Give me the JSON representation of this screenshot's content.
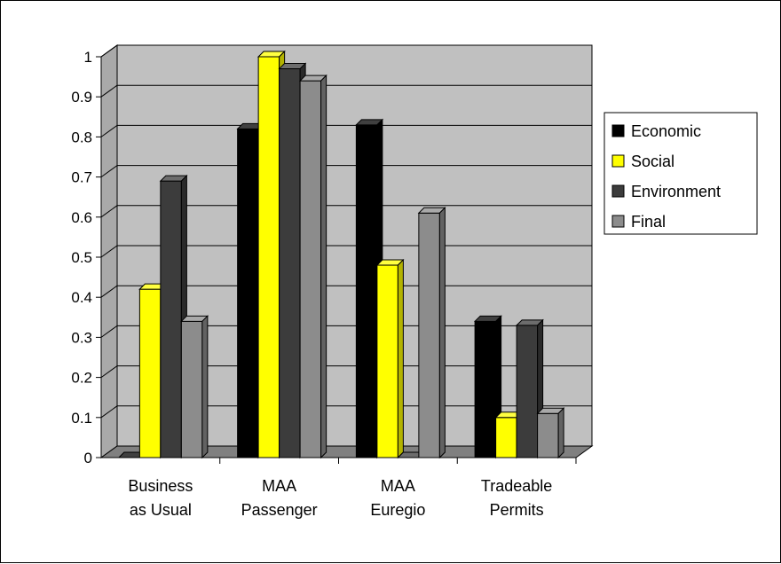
{
  "chart_data": {
    "type": "bar",
    "style": "3d-clustered",
    "categories": [
      [
        "Business",
        "as Usual"
      ],
      [
        "MAA",
        "Passenger"
      ],
      [
        "MAA",
        "Euregio"
      ],
      [
        "Tradeable",
        "Permits"
      ]
    ],
    "series": [
      {
        "name": "Economic",
        "color": "#000000",
        "values": [
          0.0,
          0.82,
          0.83,
          0.34
        ]
      },
      {
        "name": "Social",
        "color": "#ffff00",
        "values": [
          0.42,
          1.0,
          0.48,
          0.1
        ]
      },
      {
        "name": "Environment",
        "color": "#3c3c3c",
        "values": [
          0.69,
          0.97,
          0.0,
          0.33
        ]
      },
      {
        "name": "Final",
        "color": "#8c8c8c",
        "values": [
          0.34,
          0.94,
          0.61,
          0.11
        ]
      }
    ],
    "ylim": [
      0,
      1
    ],
    "yticks": [
      "0",
      "0.1",
      "0.2",
      "0.3",
      "0.4",
      "0.5",
      "0.6",
      "0.7",
      "0.8",
      "0.9",
      "1"
    ],
    "grid": true,
    "legend_position": "right",
    "wall_color": "#c0c0c0",
    "floor_color": "#808080"
  }
}
